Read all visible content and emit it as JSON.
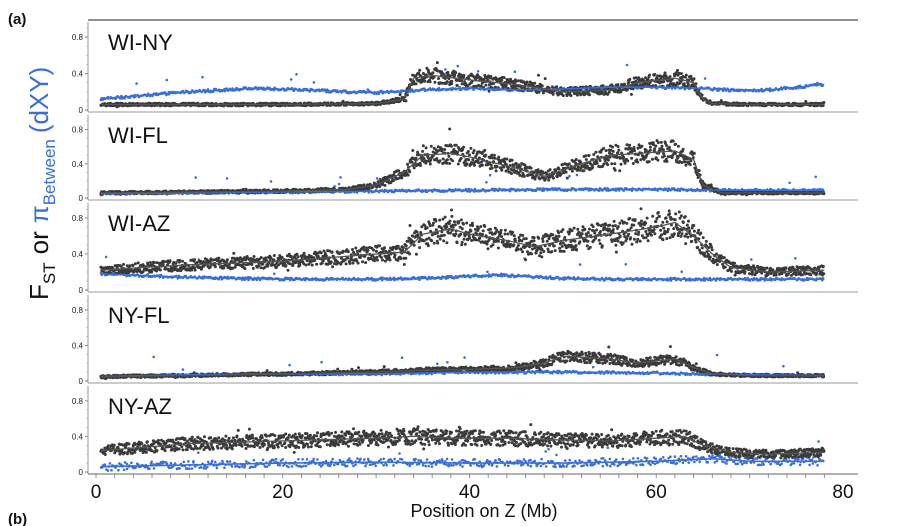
{
  "figure_labels": {
    "a": "(a)",
    "b": "(b)"
  },
  "ylabel": {
    "fst_main": "F",
    "fst_sub": "ST",
    "or": "or",
    "pi_symbol": "π",
    "pi_sub": "Between",
    "dxy": "(dXY)"
  },
  "colors": {
    "fst": "#3a3a3a",
    "dxy": "#3a6fd8",
    "axis": "#888888"
  },
  "chart_data": {
    "type": "scatter",
    "xlabel": "Position on Z (Mb)",
    "xlim": [
      0,
      80
    ],
    "x_ticks": [
      0,
      20,
      40,
      60,
      80
    ],
    "y_ticks": [
      "0",
      "0.4",
      "0.8"
    ],
    "panels": [
      {
        "name": "WI-NY",
        "ylim": [
          0,
          0.9
        ],
        "fst_profile": [
          [
            0.5,
            0.06
          ],
          [
            5,
            0.06
          ],
          [
            10,
            0.06
          ],
          [
            20,
            0.06
          ],
          [
            30,
            0.07
          ],
          [
            33,
            0.12
          ],
          [
            34,
            0.35
          ],
          [
            36,
            0.38
          ],
          [
            40,
            0.33
          ],
          [
            45,
            0.28
          ],
          [
            50,
            0.2
          ],
          [
            55,
            0.22
          ],
          [
            58,
            0.3
          ],
          [
            62,
            0.35
          ],
          [
            64,
            0.3
          ],
          [
            65,
            0.12
          ],
          [
            66,
            0.07
          ],
          [
            70,
            0.06
          ],
          [
            78,
            0.06
          ]
        ],
        "dxy_profile": [
          [
            0.5,
            0.12
          ],
          [
            5,
            0.16
          ],
          [
            10,
            0.2
          ],
          [
            17,
            0.24
          ],
          [
            22,
            0.22
          ],
          [
            27,
            0.2
          ],
          [
            30,
            0.19
          ],
          [
            35,
            0.22
          ],
          [
            40,
            0.24
          ],
          [
            45,
            0.22
          ],
          [
            50,
            0.23
          ],
          [
            55,
            0.25
          ],
          [
            60,
            0.25
          ],
          [
            64,
            0.24
          ],
          [
            68,
            0.22
          ],
          [
            72,
            0.22
          ],
          [
            78,
            0.28
          ]
        ]
      },
      {
        "name": "WI-FL",
        "ylim": [
          0,
          0.9
        ],
        "fst_profile": [
          [
            0.5,
            0.06
          ],
          [
            10,
            0.07
          ],
          [
            20,
            0.08
          ],
          [
            27,
            0.1
          ],
          [
            30,
            0.15
          ],
          [
            33,
            0.3
          ],
          [
            35,
            0.5
          ],
          [
            38,
            0.52
          ],
          [
            40,
            0.48
          ],
          [
            45,
            0.35
          ],
          [
            48,
            0.25
          ],
          [
            52,
            0.4
          ],
          [
            55,
            0.5
          ],
          [
            58,
            0.52
          ],
          [
            62,
            0.55
          ],
          [
            64,
            0.45
          ],
          [
            65,
            0.15
          ],
          [
            67,
            0.06
          ],
          [
            72,
            0.06
          ],
          [
            78,
            0.06
          ]
        ],
        "dxy_profile": [
          [
            0.5,
            0.05
          ],
          [
            10,
            0.06
          ],
          [
            20,
            0.07
          ],
          [
            30,
            0.08
          ],
          [
            40,
            0.09
          ],
          [
            50,
            0.1
          ],
          [
            60,
            0.1
          ],
          [
            70,
            0.09
          ],
          [
            78,
            0.09
          ]
        ]
      },
      {
        "name": "WI-AZ",
        "ylim": [
          0,
          0.9
        ],
        "fst_profile": [
          [
            0.5,
            0.22
          ],
          [
            5,
            0.25
          ],
          [
            10,
            0.28
          ],
          [
            15,
            0.3
          ],
          [
            20,
            0.32
          ],
          [
            25,
            0.36
          ],
          [
            30,
            0.4
          ],
          [
            33,
            0.42
          ],
          [
            35,
            0.62
          ],
          [
            38,
            0.68
          ],
          [
            40,
            0.62
          ],
          [
            44,
            0.55
          ],
          [
            47,
            0.48
          ],
          [
            50,
            0.55
          ],
          [
            55,
            0.62
          ],
          [
            60,
            0.7
          ],
          [
            62,
            0.75
          ],
          [
            64,
            0.6
          ],
          [
            66,
            0.4
          ],
          [
            68,
            0.25
          ],
          [
            72,
            0.2
          ],
          [
            78,
            0.22
          ]
        ],
        "dxy_profile": [
          [
            0.5,
            0.18
          ],
          [
            10,
            0.14
          ],
          [
            20,
            0.12
          ],
          [
            30,
            0.12
          ],
          [
            35,
            0.13
          ],
          [
            40,
            0.15
          ],
          [
            43,
            0.17
          ],
          [
            46,
            0.15
          ],
          [
            50,
            0.13
          ],
          [
            55,
            0.12
          ],
          [
            60,
            0.12
          ],
          [
            65,
            0.12
          ],
          [
            70,
            0.12
          ],
          [
            78,
            0.12
          ]
        ]
      },
      {
        "name": "NY-FL",
        "ylim": [
          0,
          0.9
        ],
        "fst_profile": [
          [
            0.5,
            0.05
          ],
          [
            10,
            0.06
          ],
          [
            20,
            0.08
          ],
          [
            30,
            0.1
          ],
          [
            35,
            0.12
          ],
          [
            40,
            0.13
          ],
          [
            45,
            0.15
          ],
          [
            48,
            0.2
          ],
          [
            50,
            0.28
          ],
          [
            55,
            0.25
          ],
          [
            58,
            0.2
          ],
          [
            62,
            0.25
          ],
          [
            64,
            0.15
          ],
          [
            66,
            0.08
          ],
          [
            70,
            0.06
          ],
          [
            78,
            0.06
          ]
        ],
        "dxy_profile": [
          [
            0.5,
            0.05
          ],
          [
            10,
            0.07
          ],
          [
            20,
            0.08
          ],
          [
            30,
            0.08
          ],
          [
            40,
            0.1
          ],
          [
            50,
            0.1
          ],
          [
            60,
            0.09
          ],
          [
            70,
            0.07
          ],
          [
            78,
            0.06
          ]
        ]
      },
      {
        "name": "NY-AZ",
        "ylim": [
          0,
          0.9
        ],
        "fst_profile": [
          [
            0.5,
            0.24
          ],
          [
            10,
            0.32
          ],
          [
            20,
            0.35
          ],
          [
            30,
            0.38
          ],
          [
            34,
            0.4
          ],
          [
            38,
            0.38
          ],
          [
            44,
            0.38
          ],
          [
            50,
            0.36
          ],
          [
            55,
            0.35
          ],
          [
            60,
            0.38
          ],
          [
            63,
            0.4
          ],
          [
            65,
            0.3
          ],
          [
            68,
            0.22
          ],
          [
            72,
            0.2
          ],
          [
            78,
            0.22
          ]
        ],
        "dxy_profile": [
          [
            0.5,
            0.06
          ],
          [
            10,
            0.08
          ],
          [
            20,
            0.1
          ],
          [
            30,
            0.11
          ],
          [
            40,
            0.1
          ],
          [
            50,
            0.1
          ],
          [
            60,
            0.12
          ],
          [
            66,
            0.15
          ],
          [
            70,
            0.12
          ],
          [
            78,
            0.12
          ]
        ]
      }
    ]
  }
}
